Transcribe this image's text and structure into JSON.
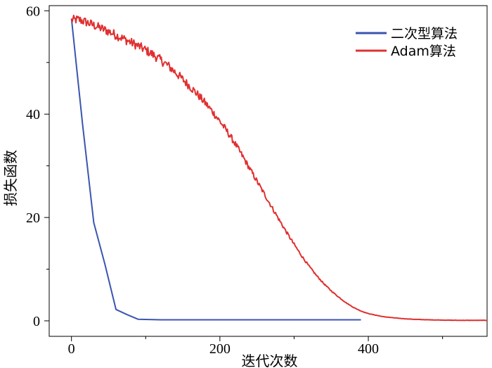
{
  "chart_data": {
    "type": "line",
    "title": "",
    "xlabel": "迭代次数",
    "ylabel": "损失函数",
    "xlim": [
      -30,
      560
    ],
    "ylim": [
      -3,
      61
    ],
    "xticks": [
      0,
      200,
      400
    ],
    "xticks_minor": [
      100,
      300,
      500
    ],
    "yticks": [
      0,
      20,
      40,
      60
    ],
    "yticks_minor": [
      10,
      30,
      50
    ],
    "grid": false,
    "legend_position": "top-right",
    "series": [
      {
        "name": "二次型算法",
        "color": "#3a55b0",
        "x": [
          0,
          15,
          30,
          45,
          60,
          75,
          90,
          120,
          200,
          300,
          390
        ],
        "y": [
          58.5,
          38,
          19,
          11,
          2.2,
          1.2,
          0.3,
          0.2,
          0.2,
          0.2,
          0.2
        ]
      },
      {
        "name": "Adam算法",
        "color": "#e03030",
        "noisy": true,
        "x": [
          0,
          10,
          20,
          30,
          40,
          50,
          60,
          70,
          80,
          90,
          100,
          110,
          120,
          130,
          140,
          150,
          160,
          170,
          180,
          190,
          200,
          210,
          220,
          230,
          240,
          250,
          260,
          270,
          280,
          290,
          300,
          310,
          320,
          330,
          340,
          350,
          360,
          370,
          380,
          390,
          400,
          420,
          440,
          460,
          480,
          500,
          520,
          540,
          560
        ],
        "y": [
          58.2,
          58.3,
          57.8,
          57.2,
          56.6,
          56.0,
          55.3,
          54.6,
          53.9,
          53.2,
          52.4,
          51.5,
          50.5,
          49.4,
          48.1,
          46.7,
          45.3,
          43.8,
          42.2,
          40.5,
          38.6,
          36.6,
          34.4,
          32.0,
          29.5,
          27.0,
          24.5,
          22.0,
          19.5,
          17.1,
          14.8,
          12.6,
          10.6,
          8.8,
          7.2,
          5.8,
          4.6,
          3.5,
          2.6,
          1.9,
          1.4,
          0.8,
          0.5,
          0.3,
          0.2,
          0.15,
          0.1,
          0.1,
          0.1
        ]
      }
    ]
  }
}
